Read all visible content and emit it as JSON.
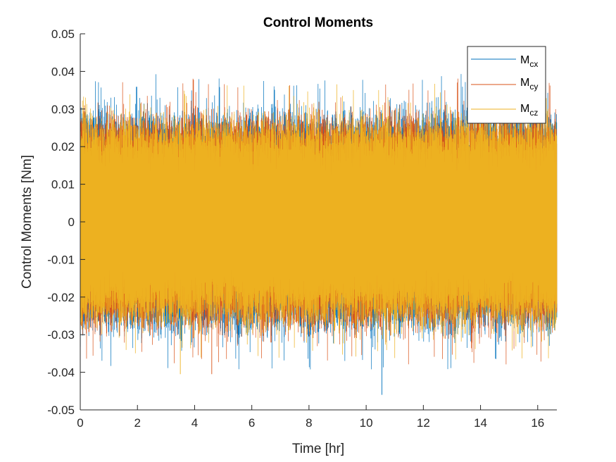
{
  "chart_data": {
    "type": "line",
    "title": "Control Moments",
    "xlabel": "Time [hr]",
    "ylabel": "Control Moments [Nm]",
    "xlim": [
      0,
      16.67
    ],
    "ylim": [
      -0.05,
      0.05
    ],
    "xticks": [
      0,
      2,
      4,
      6,
      8,
      10,
      12,
      14,
      16
    ],
    "yticks": [
      -0.05,
      -0.04,
      -0.03,
      -0.02,
      -0.01,
      0,
      0.01,
      0.02,
      0.03,
      0.04,
      0.05
    ],
    "xtick_labels": [
      "0",
      "2",
      "4",
      "6",
      "8",
      "10",
      "12",
      "14",
      "16"
    ],
    "ytick_labels": [
      "-0.05",
      "-0.04",
      "-0.03",
      "-0.02",
      "-0.01",
      "0",
      "0.01",
      "0.02",
      "0.03",
      "0.04",
      "0.05"
    ],
    "grid": false,
    "legend_position": "top-right",
    "series": [
      {
        "name": "Mcx",
        "label_main": "M",
        "label_sub": "cx",
        "color": "#0072BD",
        "typical_range": [
          -0.031,
          0.031
        ],
        "peak_max": 0.0405,
        "peak_min": -0.046,
        "peak_min_time": 10.55
      },
      {
        "name": "Mcy",
        "label_main": "M",
        "label_sub": "cy",
        "color": "#D95319",
        "typical_range": [
          -0.03,
          0.03
        ],
        "peak_max": 0.041,
        "peak_min": -0.0405,
        "peak_min_time": 4.6
      },
      {
        "name": "Mcz",
        "label_main": "M",
        "label_sub": "cz",
        "color": "#EDB120",
        "typical_range": [
          -0.029,
          0.029
        ],
        "peak_max": 0.0402,
        "peak_min": -0.0405,
        "peak_min_time": 3.5
      }
    ]
  }
}
